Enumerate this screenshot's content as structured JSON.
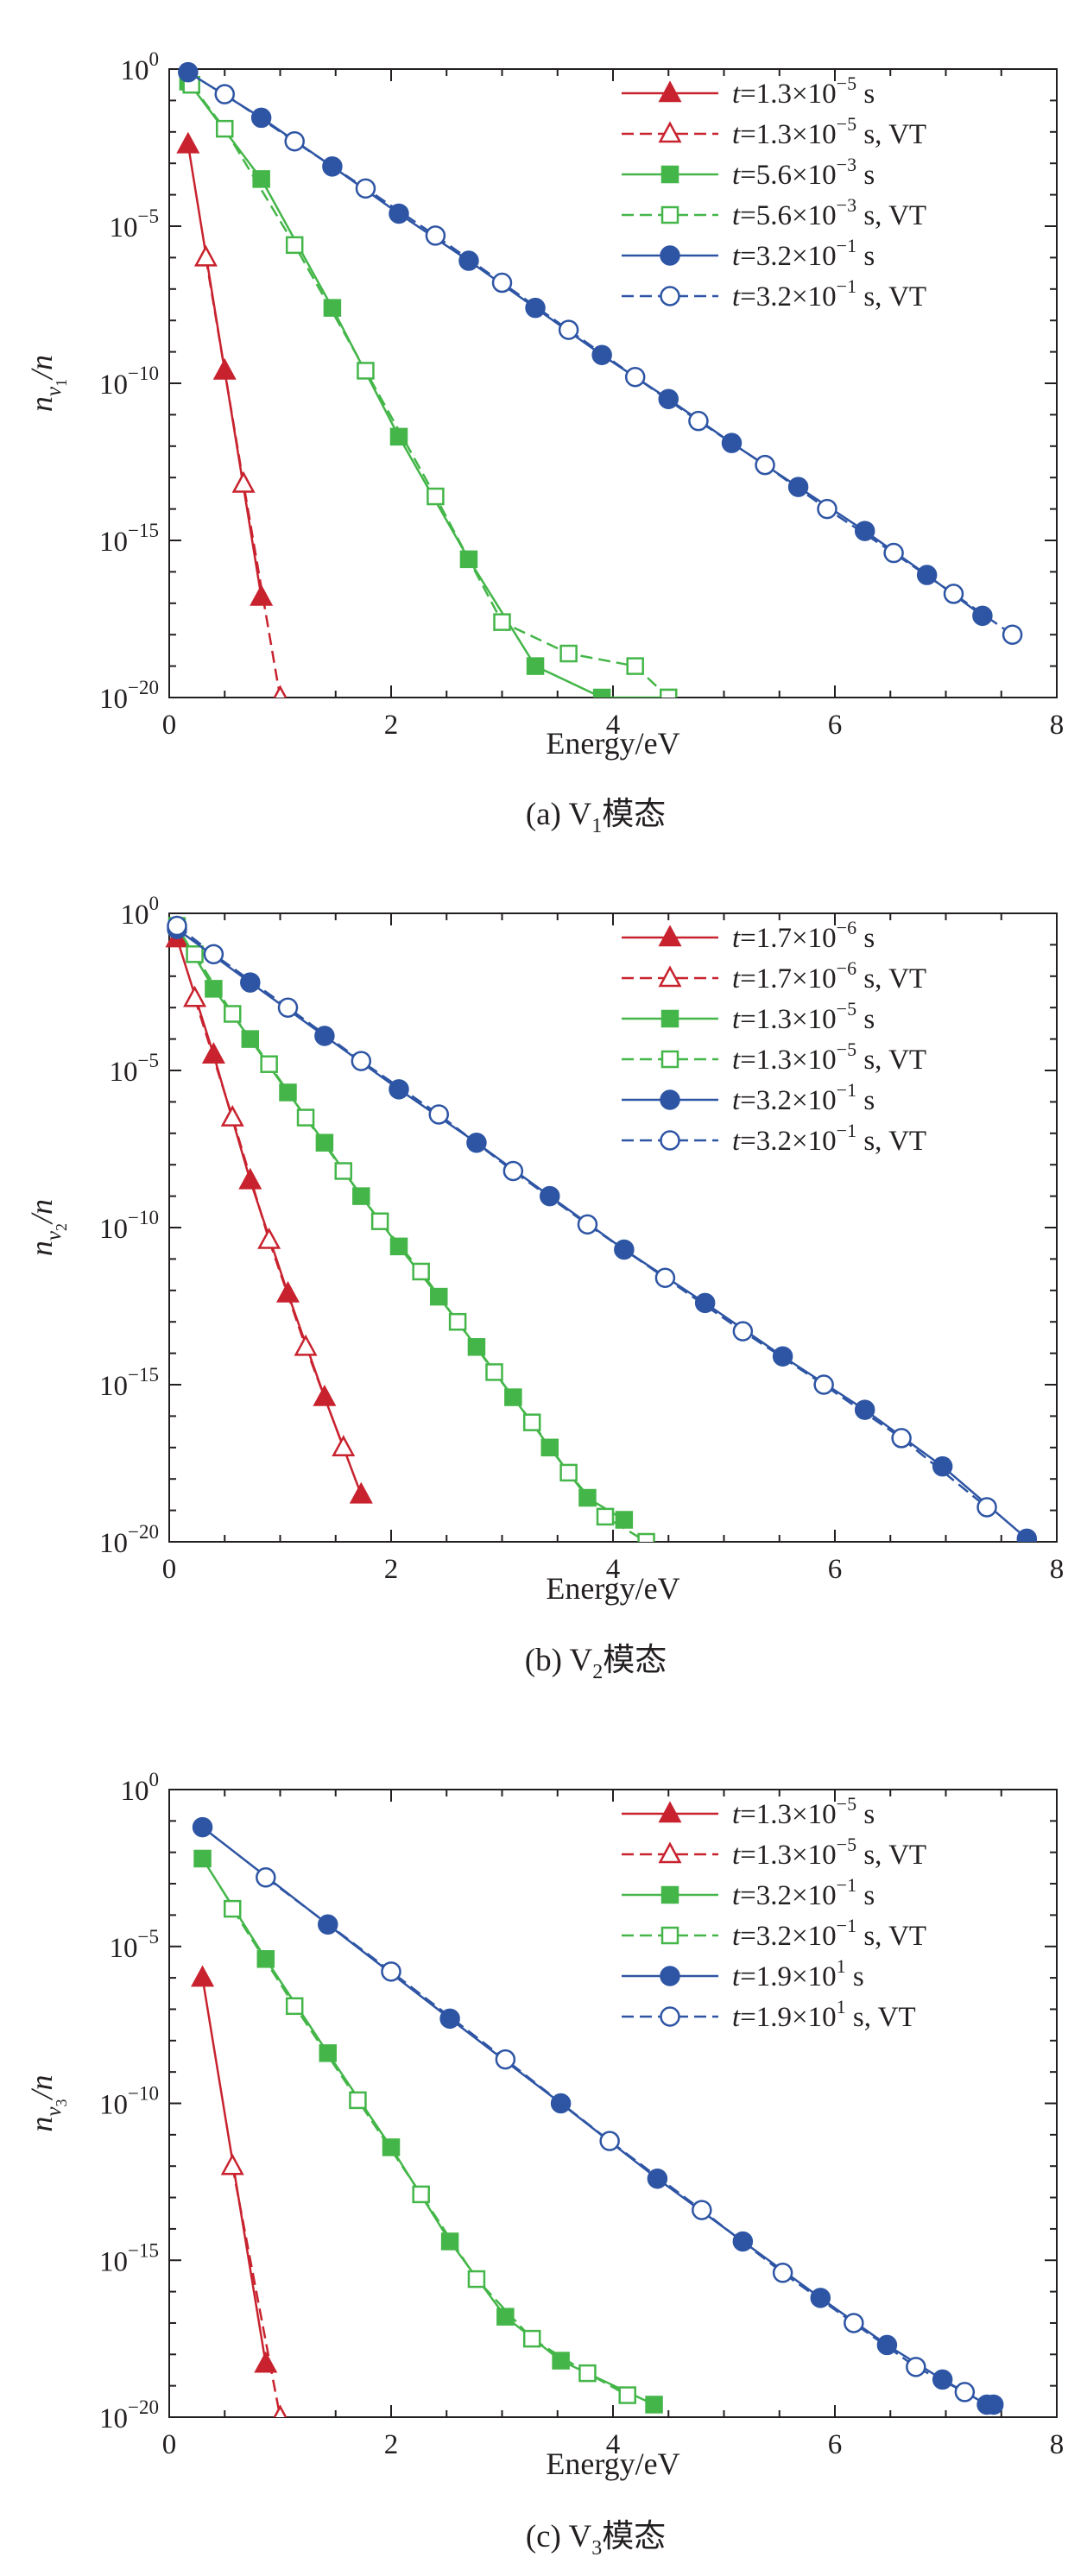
{
  "panels": [
    {
      "caption_pre": "(a) V",
      "caption_sub": "1",
      "caption_post": "模态",
      "ylabel_main": "n",
      "ylabel_sub1": "v",
      "ylabel_sub2": "1",
      "ylabel_tail": "/n"
    },
    {
      "caption_pre": "(b) V",
      "caption_sub": "2",
      "caption_post": "模态",
      "ylabel_main": "n",
      "ylabel_sub1": "v",
      "ylabel_sub2": "2",
      "ylabel_tail": "/n"
    },
    {
      "caption_pre": "(c) V",
      "caption_sub": "3",
      "caption_post": "模态",
      "ylabel_main": "n",
      "ylabel_sub1": "v",
      "ylabel_sub2": "3",
      "ylabel_tail": "/n"
    }
  ],
  "colors": {
    "red": "#c8222e",
    "green": "#44b649",
    "blue": "#2e55a4",
    "axis": "#231f20"
  },
  "chart_data": [
    {
      "type": "line",
      "xlabel": "Energy/eV",
      "ylabel": "n_v1/n",
      "xlim": [
        0,
        8
      ],
      "ylim_log10": [
        -20,
        0
      ],
      "y_scale": "log",
      "x_ticks": [
        "0",
        "2",
        "4",
        "6",
        "8"
      ],
      "y_ticks": [
        {
          "base": "10",
          "exp": "0"
        },
        {
          "base": "10",
          "exp": "−5"
        },
        {
          "base": "10",
          "exp": "−10"
        },
        {
          "base": "10",
          "exp": "−15"
        },
        {
          "base": "10",
          "exp": "−20"
        }
      ],
      "legend_position": "top-right",
      "series": [
        {
          "t_pre": "t",
          "t_eq": "=1.3×10",
          "t_exp": "−5",
          "t_post": " s",
          "color": "red",
          "marker": "triangle",
          "filled": true,
          "dashed": false,
          "x": [
            0.17,
            0.5,
            0.83
          ],
          "log10_y": [
            -2.4,
            -9.6,
            -16.8
          ]
        },
        {
          "t_pre": "t",
          "t_eq": "=1.3×10",
          "t_exp": "−5",
          "t_post": " s, VT",
          "color": "red",
          "marker": "triangle",
          "filled": false,
          "dashed": true,
          "x": [
            0.33,
            0.67,
            1.0
          ],
          "log10_y": [
            -6.0,
            -13.2,
            -20.0
          ]
        },
        {
          "t_pre": "t",
          "t_eq": "=5.6×10",
          "t_exp": "−3",
          "t_post": " s",
          "color": "green",
          "marker": "square",
          "filled": true,
          "dashed": false,
          "x": [
            0.17,
            0.83,
            1.47,
            2.07,
            2.7,
            3.3,
            3.9,
            4.5
          ],
          "log10_y": [
            -0.4,
            -3.5,
            -7.6,
            -11.7,
            -15.6,
            -19.0,
            -20.0,
            -20.0
          ]
        },
        {
          "t_pre": "t",
          "t_eq": "=5.6×10",
          "t_exp": "−3",
          "t_post": " s, VT",
          "color": "green",
          "marker": "square",
          "filled": false,
          "dashed": true,
          "x": [
            0.2,
            0.5,
            1.13,
            1.77,
            2.4,
            3.0,
            3.6,
            4.2,
            4.5
          ],
          "log10_y": [
            -0.5,
            -1.9,
            -5.6,
            -9.6,
            -13.6,
            -17.6,
            -18.6,
            -19.0,
            -20.0
          ]
        },
        {
          "t_pre": "t",
          "t_eq": "=3.2×10",
          "t_exp": "−1",
          "t_post": " s",
          "color": "blue",
          "marker": "circle",
          "filled": true,
          "dashed": false,
          "x": [
            0.17,
            0.83,
            1.47,
            2.07,
            2.7,
            3.3,
            3.9,
            4.5,
            5.07,
            5.67,
            6.27,
            6.83,
            7.33
          ],
          "log10_y": [
            -0.1,
            -1.55,
            -3.1,
            -4.6,
            -6.1,
            -7.6,
            -9.1,
            -10.5,
            -11.9,
            -13.3,
            -14.7,
            -16.1,
            -17.4
          ]
        },
        {
          "t_pre": "t",
          "t_eq": "=3.2×10",
          "t_exp": "−1",
          "t_post": " s, VT",
          "color": "blue",
          "marker": "circle",
          "filled": false,
          "dashed": true,
          "x": [
            0.5,
            1.13,
            1.77,
            2.4,
            3.0,
            3.6,
            4.2,
            4.77,
            5.37,
            5.93,
            6.53,
            7.07,
            7.6
          ],
          "log10_y": [
            -0.8,
            -2.3,
            -3.8,
            -5.3,
            -6.8,
            -8.3,
            -9.8,
            -11.2,
            -12.6,
            -14.0,
            -15.4,
            -16.7,
            -18.0
          ]
        }
      ]
    },
    {
      "type": "line",
      "xlabel": "Energy/eV",
      "ylabel": "n_v2/n",
      "xlim": [
        0,
        8
      ],
      "ylim_log10": [
        -20,
        0
      ],
      "y_scale": "log",
      "x_ticks": [
        "0",
        "2",
        "4",
        "6",
        "8"
      ],
      "y_ticks": [
        {
          "base": "10",
          "exp": "0"
        },
        {
          "base": "10",
          "exp": "−5"
        },
        {
          "base": "10",
          "exp": "−10"
        },
        {
          "base": "10",
          "exp": "−15"
        },
        {
          "base": "10",
          "exp": "−20"
        }
      ],
      "legend_position": "top-right",
      "series": [
        {
          "t_pre": "t",
          "t_eq": "=1.7×10",
          "t_exp": "−6",
          "t_post": " s",
          "color": "red",
          "marker": "triangle",
          "filled": true,
          "dashed": false,
          "x": [
            0.07,
            0.4,
            0.73,
            1.07,
            1.4,
            1.73
          ],
          "log10_y": [
            -0.8,
            -4.5,
            -8.5,
            -12.1,
            -15.4,
            -18.5
          ]
        },
        {
          "t_pre": "t",
          "t_eq": "=1.7×10",
          "t_exp": "−6",
          "t_post": " s, VT",
          "color": "red",
          "marker": "triangle",
          "filled": false,
          "dashed": true,
          "x": [
            0.23,
            0.57,
            0.9,
            1.23,
            1.57
          ],
          "log10_y": [
            -2.7,
            -6.5,
            -10.4,
            -13.8,
            -17.0
          ]
        },
        {
          "t_pre": "t",
          "t_eq": "=1.3×10",
          "t_exp": "−5",
          "t_post": " s",
          "color": "green",
          "marker": "square",
          "filled": true,
          "dashed": false,
          "x": [
            0.07,
            0.4,
            0.73,
            1.07,
            1.4,
            1.73,
            2.07,
            2.43,
            2.77,
            3.1,
            3.43,
            3.77,
            4.1
          ],
          "log10_y": [
            -0.4,
            -2.4,
            -4.0,
            -5.7,
            -7.3,
            -9.0,
            -10.6,
            -12.2,
            -13.8,
            -15.4,
            -17.0,
            -18.6,
            -19.3
          ]
        },
        {
          "t_pre": "t",
          "t_eq": "=1.3×10",
          "t_exp": "−5",
          "t_post": " s, VT",
          "color": "green",
          "marker": "square",
          "filled": false,
          "dashed": true,
          "x": [
            0.23,
            0.57,
            0.9,
            1.23,
            1.57,
            1.9,
            2.27,
            2.6,
            2.93,
            3.27,
            3.6,
            3.93,
            4.3
          ],
          "log10_y": [
            -1.3,
            -3.2,
            -4.8,
            -6.5,
            -8.2,
            -9.8,
            -11.4,
            -13.0,
            -14.6,
            -16.2,
            -17.8,
            -19.2,
            -20.0
          ]
        },
        {
          "t_pre": "t",
          "t_eq": "=3.2×10",
          "t_exp": "−1",
          "t_post": " s",
          "color": "blue",
          "marker": "circle",
          "filled": true,
          "dashed": false,
          "x": [
            0.07,
            0.73,
            1.4,
            2.07,
            2.77,
            3.43,
            4.1,
            4.83,
            5.53,
            6.27,
            6.97,
            7.73
          ],
          "log10_y": [
            -0.5,
            -2.2,
            -3.9,
            -5.6,
            -7.3,
            -9.0,
            -10.7,
            -12.4,
            -14.1,
            -15.8,
            -17.6,
            -19.9
          ]
        },
        {
          "t_pre": "t",
          "t_eq": "=3.2×10",
          "t_exp": "−1",
          "t_post": " s, VT",
          "color": "blue",
          "marker": "circle",
          "filled": false,
          "dashed": true,
          "x": [
            0.07,
            0.4,
            1.07,
            1.73,
            2.43,
            3.1,
            3.77,
            4.47,
            5.17,
            5.9,
            6.6,
            7.37
          ],
          "log10_y": [
            -0.4,
            -1.3,
            -3.0,
            -4.7,
            -6.4,
            -8.2,
            -9.9,
            -11.6,
            -13.3,
            -15.0,
            -16.7,
            -18.9
          ]
        }
      ]
    },
    {
      "type": "line",
      "xlabel": "Energy/eV",
      "ylabel": "n_v3/n",
      "xlim": [
        0,
        8
      ],
      "ylim_log10": [
        -20,
        0
      ],
      "y_scale": "log",
      "x_ticks": [
        "0",
        "2",
        "4",
        "6",
        "8"
      ],
      "y_ticks": [
        {
          "base": "10",
          "exp": "0"
        },
        {
          "base": "10",
          "exp": "−5"
        },
        {
          "base": "10",
          "exp": "−10"
        },
        {
          "base": "10",
          "exp": "−15"
        },
        {
          "base": "10",
          "exp": "−20"
        }
      ],
      "legend_position": "top-right",
      "series": [
        {
          "t_pre": "t",
          "t_eq": "=1.3×10",
          "t_exp": "−5",
          "t_post": " s",
          "color": "red",
          "marker": "triangle",
          "filled": true,
          "dashed": false,
          "x": [
            0.3,
            0.87
          ],
          "log10_y": [
            -6.0,
            -18.3
          ]
        },
        {
          "t_pre": "t",
          "t_eq": "=1.3×10",
          "t_exp": "−5",
          "t_post": " s, VT",
          "color": "red",
          "marker": "triangle",
          "filled": false,
          "dashed": true,
          "x": [
            0.57,
            1.0
          ],
          "log10_y": [
            -12.0,
            -20.0
          ]
        },
        {
          "t_pre": "t",
          "t_eq": "=3.2×10",
          "t_exp": "−1",
          "t_post": " s",
          "color": "green",
          "marker": "square",
          "filled": true,
          "dashed": false,
          "x": [
            0.3,
            0.87,
            1.43,
            2.0,
            2.53,
            3.03,
            3.53,
            4.37
          ],
          "log10_y": [
            -2.2,
            -5.4,
            -8.4,
            -11.4,
            -14.4,
            -16.8,
            -18.2,
            -19.6
          ]
        },
        {
          "t_pre": "t",
          "t_eq": "=3.2×10",
          "t_exp": "−1",
          "t_post": " s, VT",
          "color": "green",
          "marker": "square",
          "filled": false,
          "dashed": true,
          "x": [
            0.57,
            1.13,
            1.7,
            2.27,
            2.77,
            3.27,
            3.77,
            4.13
          ],
          "log10_y": [
            -3.8,
            -6.9,
            -9.9,
            -12.9,
            -15.6,
            -17.5,
            -18.6,
            -19.3
          ]
        },
        {
          "t_pre": "t",
          "t_eq": "=1.9×10",
          "t_exp": "1",
          "t_post": " s",
          "color": "blue",
          "marker": "circle",
          "filled": true,
          "dashed": false,
          "x": [
            0.3,
            1.43,
            2.53,
            3.53,
            4.4,
            5.17,
            5.87,
            6.47,
            6.97,
            7.37,
            7.43
          ],
          "log10_y": [
            -1.2,
            -4.3,
            -7.3,
            -10.0,
            -12.4,
            -14.4,
            -16.2,
            -17.7,
            -18.8,
            -19.6,
            -19.6
          ]
        },
        {
          "t_pre": "t",
          "t_eq": "=1.9×10",
          "t_exp": "1",
          "t_post": " s, VT",
          "color": "blue",
          "marker": "circle",
          "filled": false,
          "dashed": true,
          "x": [
            0.87,
            2.0,
            3.03,
            3.97,
            4.8,
            5.53,
            6.17,
            6.73,
            7.17
          ],
          "log10_y": [
            -2.8,
            -5.8,
            -8.6,
            -11.2,
            -13.4,
            -15.4,
            -17.0,
            -18.4,
            -19.2
          ]
        }
      ]
    }
  ]
}
